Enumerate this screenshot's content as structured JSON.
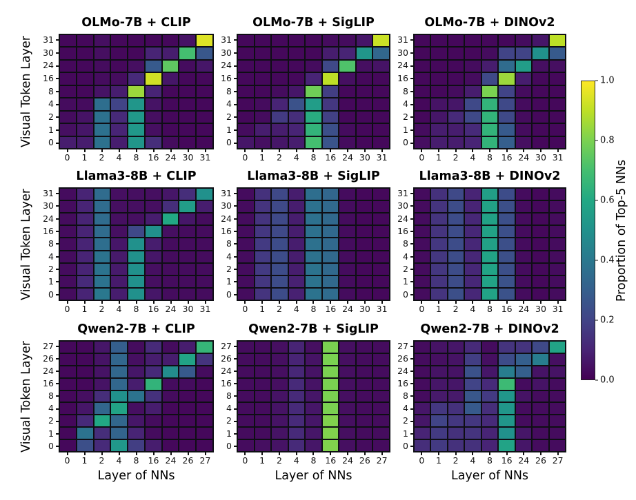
{
  "figure": {
    "ylabel": "Visual Token Layer",
    "xlabel": "Layer of NNs",
    "background": "#ffffff",
    "colorbar": {
      "label": "Proportion of Top-5 NNs",
      "colormap": "viridis",
      "min": 0.0,
      "max": 1.0,
      "tick_labels": [
        "1.0",
        "0.8",
        "0.6",
        "0.4",
        "0.2",
        "0.0"
      ]
    }
  },
  "chart_data": [
    {
      "type": "heatmap",
      "title": "OLMo-7B + CLIP",
      "x_ticks": [
        "0",
        "1",
        "2",
        "4",
        "8",
        "16",
        "24",
        "30",
        "31"
      ],
      "y_ticks": [
        "31",
        "30",
        "24",
        "16",
        "8",
        "4",
        "2",
        "1",
        "0"
      ],
      "values": [
        [
          0.02,
          0.02,
          0.04,
          0.02,
          0.02,
          0.02,
          0.02,
          0.05,
          0.95
        ],
        [
          0.02,
          0.02,
          0.04,
          0.02,
          0.02,
          0.1,
          0.08,
          0.7,
          0.27
        ],
        [
          0.02,
          0.02,
          0.03,
          0.02,
          0.04,
          0.28,
          0.75,
          0.03,
          0.06
        ],
        [
          0.02,
          0.02,
          0.03,
          0.03,
          0.12,
          0.93,
          0.06,
          0.02,
          0.02
        ],
        [
          0.02,
          0.02,
          0.05,
          0.08,
          0.85,
          0.1,
          0.02,
          0.02,
          0.02
        ],
        [
          0.03,
          0.03,
          0.36,
          0.2,
          0.52,
          0.05,
          0.02,
          0.02,
          0.02
        ],
        [
          0.03,
          0.05,
          0.37,
          0.12,
          0.53,
          0.04,
          0.02,
          0.02,
          0.02
        ],
        [
          0.04,
          0.06,
          0.37,
          0.1,
          0.53,
          0.04,
          0.02,
          0.02,
          0.02
        ],
        [
          0.08,
          0.08,
          0.37,
          0.08,
          0.52,
          0.13,
          0.03,
          0.02,
          0.02
        ]
      ]
    },
    {
      "type": "heatmap",
      "title": "OLMo-7B + SigLIP",
      "x_ticks": [
        "0",
        "1",
        "2",
        "4",
        "8",
        "16",
        "24",
        "30",
        "31"
      ],
      "y_ticks": [
        "31",
        "30",
        "24",
        "16",
        "8",
        "4",
        "2",
        "1",
        "0"
      ],
      "values": [
        [
          0.02,
          0.02,
          0.02,
          0.02,
          0.02,
          0.03,
          0.03,
          0.06,
          0.92
        ],
        [
          0.02,
          0.02,
          0.02,
          0.02,
          0.02,
          0.08,
          0.1,
          0.52,
          0.33
        ],
        [
          0.02,
          0.02,
          0.02,
          0.02,
          0.03,
          0.22,
          0.72,
          0.04,
          0.05
        ],
        [
          0.02,
          0.02,
          0.02,
          0.02,
          0.1,
          0.9,
          0.04,
          0.02,
          0.02
        ],
        [
          0.02,
          0.02,
          0.03,
          0.06,
          0.78,
          0.18,
          0.02,
          0.02,
          0.02
        ],
        [
          0.02,
          0.03,
          0.1,
          0.25,
          0.55,
          0.16,
          0.02,
          0.02,
          0.02
        ],
        [
          0.02,
          0.03,
          0.17,
          0.13,
          0.62,
          0.19,
          0.02,
          0.02,
          0.02
        ],
        [
          0.03,
          0.08,
          0.08,
          0.1,
          0.65,
          0.24,
          0.03,
          0.02,
          0.02
        ],
        [
          0.06,
          0.04,
          0.06,
          0.08,
          0.7,
          0.26,
          0.03,
          0.02,
          0.02
        ]
      ]
    },
    {
      "type": "heatmap",
      "title": "OLMo-7B + DINOv2",
      "x_ticks": [
        "0",
        "1",
        "2",
        "4",
        "8",
        "16",
        "24",
        "30",
        "31"
      ],
      "y_ticks": [
        "31",
        "30",
        "24",
        "16",
        "8",
        "4",
        "2",
        "1",
        "0"
      ],
      "values": [
        [
          0.02,
          0.02,
          0.02,
          0.02,
          0.02,
          0.02,
          0.03,
          0.06,
          0.9
        ],
        [
          0.02,
          0.02,
          0.02,
          0.02,
          0.03,
          0.2,
          0.2,
          0.5,
          0.28
        ],
        [
          0.02,
          0.02,
          0.02,
          0.03,
          0.08,
          0.35,
          0.55,
          0.04,
          0.04
        ],
        [
          0.02,
          0.02,
          0.02,
          0.03,
          0.22,
          0.85,
          0.08,
          0.02,
          0.02
        ],
        [
          0.02,
          0.02,
          0.03,
          0.08,
          0.8,
          0.2,
          0.03,
          0.02,
          0.02
        ],
        [
          0.02,
          0.05,
          0.06,
          0.22,
          0.65,
          0.22,
          0.03,
          0.02,
          0.02
        ],
        [
          0.02,
          0.06,
          0.12,
          0.22,
          0.65,
          0.22,
          0.03,
          0.02,
          0.02
        ],
        [
          0.03,
          0.08,
          0.08,
          0.12,
          0.65,
          0.28,
          0.03,
          0.02,
          0.02
        ],
        [
          0.04,
          0.08,
          0.08,
          0.1,
          0.65,
          0.3,
          0.04,
          0.02,
          0.02
        ]
      ]
    },
    {
      "type": "heatmap",
      "title": "Llama3-8B + CLIP",
      "x_ticks": [
        "0",
        "1",
        "2",
        "4",
        "8",
        "16",
        "24",
        "30",
        "31"
      ],
      "y_ticks": [
        "31",
        "30",
        "24",
        "16",
        "8",
        "4",
        "2",
        "1",
        "0"
      ],
      "values": [
        [
          0.03,
          0.1,
          0.35,
          0.04,
          0.04,
          0.04,
          0.06,
          0.13,
          0.5
        ],
        [
          0.03,
          0.1,
          0.35,
          0.04,
          0.04,
          0.04,
          0.13,
          0.55,
          0.08
        ],
        [
          0.03,
          0.1,
          0.35,
          0.04,
          0.04,
          0.08,
          0.6,
          0.06,
          0.03
        ],
        [
          0.03,
          0.1,
          0.35,
          0.04,
          0.22,
          0.5,
          0.04,
          0.03,
          0.03
        ],
        [
          0.03,
          0.1,
          0.36,
          0.06,
          0.5,
          0.08,
          0.03,
          0.03,
          0.03
        ],
        [
          0.03,
          0.1,
          0.38,
          0.07,
          0.5,
          0.06,
          0.03,
          0.03,
          0.03
        ],
        [
          0.03,
          0.1,
          0.38,
          0.07,
          0.5,
          0.04,
          0.03,
          0.03,
          0.03
        ],
        [
          0.03,
          0.12,
          0.38,
          0.07,
          0.5,
          0.04,
          0.03,
          0.03,
          0.03
        ],
        [
          0.03,
          0.1,
          0.4,
          0.08,
          0.5,
          0.06,
          0.03,
          0.03,
          0.03
        ]
      ]
    },
    {
      "type": "heatmap",
      "title": "Llama3-8B + SigLIP",
      "x_ticks": [
        "0",
        "1",
        "2",
        "4",
        "8",
        "16",
        "24",
        "30",
        "31"
      ],
      "y_ticks": [
        "31",
        "30",
        "24",
        "16",
        "8",
        "4",
        "2",
        "1",
        "0"
      ],
      "values": [
        [
          0.03,
          0.14,
          0.22,
          0.08,
          0.36,
          0.33,
          0.03,
          0.02,
          0.02
        ],
        [
          0.03,
          0.15,
          0.22,
          0.08,
          0.37,
          0.34,
          0.03,
          0.02,
          0.02
        ],
        [
          0.03,
          0.15,
          0.22,
          0.08,
          0.37,
          0.34,
          0.03,
          0.02,
          0.02
        ],
        [
          0.03,
          0.16,
          0.22,
          0.08,
          0.37,
          0.34,
          0.03,
          0.02,
          0.02
        ],
        [
          0.03,
          0.17,
          0.23,
          0.08,
          0.37,
          0.34,
          0.03,
          0.02,
          0.02
        ],
        [
          0.03,
          0.17,
          0.23,
          0.08,
          0.37,
          0.34,
          0.03,
          0.02,
          0.02
        ],
        [
          0.03,
          0.17,
          0.23,
          0.08,
          0.38,
          0.34,
          0.03,
          0.02,
          0.02
        ],
        [
          0.03,
          0.16,
          0.23,
          0.09,
          0.38,
          0.34,
          0.03,
          0.02,
          0.02
        ],
        [
          0.03,
          0.15,
          0.23,
          0.09,
          0.38,
          0.35,
          0.03,
          0.02,
          0.02
        ]
      ]
    },
    {
      "type": "heatmap",
      "title": "Llama3-8B + DINOv2",
      "x_ticks": [
        "0",
        "1",
        "2",
        "4",
        "8",
        "16",
        "24",
        "30",
        "31"
      ],
      "y_ticks": [
        "31",
        "30",
        "24",
        "16",
        "8",
        "4",
        "2",
        "1",
        "0"
      ],
      "values": [
        [
          0.03,
          0.14,
          0.22,
          0.1,
          0.56,
          0.23,
          0.03,
          0.02,
          0.03
        ],
        [
          0.03,
          0.15,
          0.23,
          0.1,
          0.57,
          0.24,
          0.03,
          0.02,
          0.03
        ],
        [
          0.03,
          0.15,
          0.23,
          0.11,
          0.57,
          0.24,
          0.03,
          0.02,
          0.03
        ],
        [
          0.03,
          0.15,
          0.23,
          0.11,
          0.57,
          0.24,
          0.03,
          0.02,
          0.03
        ],
        [
          0.03,
          0.16,
          0.23,
          0.11,
          0.57,
          0.24,
          0.03,
          0.02,
          0.03
        ],
        [
          0.03,
          0.16,
          0.23,
          0.11,
          0.58,
          0.24,
          0.03,
          0.02,
          0.03
        ],
        [
          0.03,
          0.16,
          0.23,
          0.11,
          0.58,
          0.24,
          0.03,
          0.02,
          0.03
        ],
        [
          0.03,
          0.15,
          0.23,
          0.11,
          0.58,
          0.25,
          0.03,
          0.02,
          0.03
        ],
        [
          0.03,
          0.15,
          0.24,
          0.11,
          0.58,
          0.25,
          0.03,
          0.02,
          0.03
        ]
      ]
    },
    {
      "type": "heatmap",
      "title": "Qwen2-7B + CLIP",
      "x_ticks": [
        "0",
        "1",
        "2",
        "4",
        "8",
        "16",
        "24",
        "26",
        "27"
      ],
      "y_ticks": [
        "27",
        "26",
        "24",
        "16",
        "8",
        "4",
        "2",
        "1",
        "0"
      ],
      "values": [
        [
          0.02,
          0.02,
          0.06,
          0.3,
          0.03,
          0.12,
          0.03,
          0.08,
          0.66
        ],
        [
          0.02,
          0.02,
          0.05,
          0.33,
          0.04,
          0.08,
          0.08,
          0.58,
          0.15
        ],
        [
          0.02,
          0.02,
          0.05,
          0.33,
          0.06,
          0.12,
          0.48,
          0.28,
          0.03
        ],
        [
          0.02,
          0.02,
          0.05,
          0.33,
          0.08,
          0.65,
          0.03,
          0.03,
          0.02
        ],
        [
          0.02,
          0.04,
          0.13,
          0.5,
          0.38,
          0.14,
          0.03,
          0.02,
          0.02
        ],
        [
          0.02,
          0.06,
          0.33,
          0.58,
          0.04,
          0.08,
          0.02,
          0.02,
          0.02
        ],
        [
          0.02,
          0.12,
          0.6,
          0.33,
          0.06,
          0.03,
          0.02,
          0.02,
          0.02
        ],
        [
          0.02,
          0.38,
          0.13,
          0.32,
          0.1,
          0.03,
          0.02,
          0.02,
          0.02
        ],
        [
          0.02,
          0.24,
          0.12,
          0.53,
          0.18,
          0.08,
          0.02,
          0.02,
          0.02
        ]
      ]
    },
    {
      "type": "heatmap",
      "title": "Qwen2-7B + SigLIP",
      "x_ticks": [
        "0",
        "1",
        "2",
        "4",
        "8",
        "16",
        "24",
        "26",
        "27"
      ],
      "y_ticks": [
        "27",
        "26",
        "24",
        "16",
        "8",
        "4",
        "2",
        "1",
        "0"
      ],
      "values": [
        [
          0.03,
          0.03,
          0.04,
          0.1,
          0.04,
          0.8,
          0.04,
          0.03,
          0.03
        ],
        [
          0.03,
          0.03,
          0.04,
          0.1,
          0.05,
          0.8,
          0.04,
          0.03,
          0.03
        ],
        [
          0.03,
          0.03,
          0.04,
          0.11,
          0.05,
          0.8,
          0.04,
          0.03,
          0.03
        ],
        [
          0.03,
          0.03,
          0.04,
          0.12,
          0.05,
          0.8,
          0.04,
          0.03,
          0.03
        ],
        [
          0.03,
          0.03,
          0.05,
          0.12,
          0.06,
          0.8,
          0.04,
          0.03,
          0.03
        ],
        [
          0.03,
          0.03,
          0.05,
          0.12,
          0.06,
          0.8,
          0.04,
          0.03,
          0.03
        ],
        [
          0.03,
          0.03,
          0.05,
          0.12,
          0.06,
          0.81,
          0.04,
          0.03,
          0.03
        ],
        [
          0.03,
          0.03,
          0.05,
          0.12,
          0.06,
          0.81,
          0.04,
          0.03,
          0.03
        ],
        [
          0.03,
          0.04,
          0.05,
          0.12,
          0.06,
          0.81,
          0.04,
          0.03,
          0.03
        ]
      ]
    },
    {
      "type": "heatmap",
      "title": "Qwen2-7B + DINOv2",
      "x_ticks": [
        "0",
        "1",
        "2",
        "4",
        "8",
        "16",
        "24",
        "26",
        "27"
      ],
      "y_ticks": [
        "27",
        "26",
        "24",
        "16",
        "8",
        "4",
        "2",
        "1",
        "0"
      ],
      "values": [
        [
          0.03,
          0.05,
          0.06,
          0.12,
          0.03,
          0.15,
          0.15,
          0.22,
          0.58
        ],
        [
          0.03,
          0.04,
          0.05,
          0.18,
          0.04,
          0.23,
          0.3,
          0.42,
          0.04
        ],
        [
          0.03,
          0.05,
          0.05,
          0.25,
          0.06,
          0.42,
          0.3,
          0.05,
          0.05
        ],
        [
          0.03,
          0.06,
          0.06,
          0.2,
          0.12,
          0.68,
          0.03,
          0.05,
          0.03
        ],
        [
          0.03,
          0.07,
          0.07,
          0.27,
          0.17,
          0.52,
          0.05,
          0.03,
          0.03
        ],
        [
          0.06,
          0.16,
          0.14,
          0.28,
          0.13,
          0.52,
          0.03,
          0.03,
          0.03
        ],
        [
          0.06,
          0.2,
          0.16,
          0.16,
          0.12,
          0.52,
          0.03,
          0.03,
          0.03
        ],
        [
          0.1,
          0.17,
          0.14,
          0.15,
          0.1,
          0.5,
          0.06,
          0.03,
          0.03
        ],
        [
          0.13,
          0.17,
          0.14,
          0.14,
          0.1,
          0.58,
          0.06,
          0.03,
          0.03
        ]
      ]
    }
  ]
}
